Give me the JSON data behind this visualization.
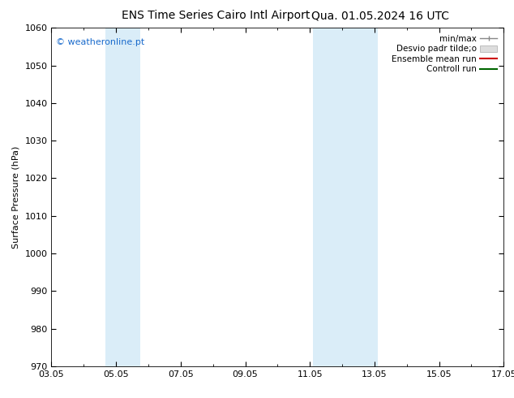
{
  "title_left": "ENS Time Series Cairo Intl Airport",
  "title_right": "Qua. 01.05.2024 16 UTC",
  "ylabel": "Surface Pressure (hPa)",
  "ylim": [
    970,
    1060
  ],
  "yticks": [
    970,
    980,
    990,
    1000,
    1010,
    1020,
    1030,
    1040,
    1050,
    1060
  ],
  "xtick_labels": [
    "03.05",
    "05.05",
    "07.05",
    "09.05",
    "11.05",
    "13.05",
    "15.05",
    "17.05"
  ],
  "xtick_positions_days": [
    0,
    2,
    4,
    6,
    8,
    10,
    12,
    14
  ],
  "total_days": 14,
  "shaded_bands": [
    {
      "x0_day": 1.67,
      "x1_day": 2.75
    },
    {
      "x0_day": 8.1,
      "x1_day": 10.1
    }
  ],
  "shade_color": "#daedf8",
  "watermark_text": "© weatheronline.pt",
  "watermark_color": "#1a6bcc",
  "legend_items": [
    {
      "label": "min/max",
      "color": "#aaaaaa",
      "style": "hline_capped"
    },
    {
      "label": "Desvio padr tilde;o",
      "color": "#cccccc",
      "style": "box"
    },
    {
      "label": "Ensemble mean run",
      "color": "#cc0000",
      "style": "line"
    },
    {
      "label": "Controll run",
      "color": "#006600",
      "style": "line"
    }
  ],
  "bg_color": "#ffffff",
  "title_fontsize": 10,
  "axis_fontsize": 8,
  "tick_fontsize": 8,
  "legend_fontsize": 7.5
}
